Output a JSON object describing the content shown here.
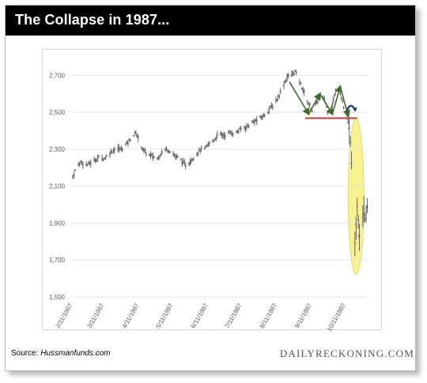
{
  "header": {
    "title": "The Collapse in 1987..."
  },
  "footer": {
    "source_prefix": "Source: ",
    "source_name": "Hussmanfunds.com",
    "brand": "DAILYRECKONING.COM"
  },
  "colors": {
    "candles": "#555555",
    "trend_arrows": "#3f6b2e",
    "support_line": "#c0504d",
    "highlight_ellipse": "#f3ee6e",
    "arc": "#1f3c6e"
  },
  "chart_data": {
    "type": "line",
    "style": "ohlc-bars",
    "title": "",
    "xlabel": "",
    "ylabel": "",
    "ylim": [
      1500,
      2800
    ],
    "yticks": [
      1500,
      1700,
      1900,
      2100,
      2300,
      2500,
      2700
    ],
    "ytick_labels": [
      "1,500",
      "1,700",
      "1,900",
      "2,100",
      "2,300",
      "2,500",
      "2,700"
    ],
    "xlim": [
      "1987-02-11",
      "1987-10-31"
    ],
    "xticks": [
      "2/11/1987",
      "3/11/1987",
      "4/11/1987",
      "5/11/1987",
      "6/11/1987",
      "7/11/1987",
      "8/11/1987",
      "9/11/1987",
      "10/11/1987"
    ],
    "grid": "horizontal",
    "series": [
      {
        "values": [
          [
            "1987-02-11",
            2150
          ],
          [
            "1987-02-14",
            2200
          ],
          [
            "1987-02-18",
            2230
          ],
          [
            "1987-02-24",
            2215
          ],
          [
            "1987-03-01",
            2235
          ],
          [
            "1987-03-06",
            2255
          ],
          [
            "1987-03-11",
            2250
          ],
          [
            "1987-03-16",
            2280
          ],
          [
            "1987-03-21",
            2305
          ],
          [
            "1987-03-26",
            2300
          ],
          [
            "1987-03-31",
            2330
          ],
          [
            "1987-04-05",
            2370
          ],
          [
            "1987-04-08",
            2390
          ],
          [
            "1987-04-11",
            2340
          ],
          [
            "1987-04-15",
            2290
          ],
          [
            "1987-04-19",
            2270
          ],
          [
            "1987-04-23",
            2260
          ],
          [
            "1987-04-27",
            2250
          ],
          [
            "1987-05-01",
            2285
          ],
          [
            "1987-05-05",
            2300
          ],
          [
            "1987-05-09",
            2290
          ],
          [
            "1987-05-13",
            2260
          ],
          [
            "1987-05-17",
            2250
          ],
          [
            "1987-05-20",
            2225
          ],
          [
            "1987-05-23",
            2210
          ],
          [
            "1987-05-26",
            2235
          ],
          [
            "1987-05-30",
            2265
          ],
          [
            "1987-06-04",
            2295
          ],
          [
            "1987-06-08",
            2300
          ],
          [
            "1987-06-12",
            2330
          ],
          [
            "1987-06-16",
            2350
          ],
          [
            "1987-06-20",
            2380
          ],
          [
            "1987-06-25",
            2375
          ],
          [
            "1987-06-30",
            2390
          ],
          [
            "1987-07-05",
            2385
          ],
          [
            "1987-07-10",
            2410
          ],
          [
            "1987-07-15",
            2420
          ],
          [
            "1987-07-20",
            2445
          ],
          [
            "1987-07-25",
            2460
          ],
          [
            "1987-07-30",
            2480
          ],
          [
            "1987-08-04",
            2515
          ],
          [
            "1987-08-08",
            2545
          ],
          [
            "1987-08-12",
            2580
          ],
          [
            "1987-08-16",
            2640
          ],
          [
            "1987-08-20",
            2690
          ],
          [
            "1987-08-24",
            2705
          ],
          [
            "1987-08-27",
            2720
          ],
          [
            "1987-08-30",
            2680
          ],
          [
            "1987-09-03",
            2620
          ],
          [
            "1987-09-07",
            2560
          ],
          [
            "1987-09-11",
            2510
          ],
          [
            "1987-09-15",
            2550
          ],
          [
            "1987-09-19",
            2585
          ],
          [
            "1987-09-22",
            2570
          ],
          [
            "1987-09-25",
            2505
          ],
          [
            "1987-09-29",
            2545
          ],
          [
            "1987-10-02",
            2610
          ],
          [
            "1987-10-05",
            2630
          ],
          [
            "1987-10-08",
            2560
          ],
          [
            "1987-10-10",
            2490
          ],
          [
            "1987-10-12",
            2470
          ],
          [
            "1987-10-14",
            2410
          ],
          [
            "1987-10-16",
            2250
          ],
          [
            "1987-10-18",
            1940
          ],
          [
            "1987-10-19",
            1780
          ],
          [
            "1987-10-20",
            1870
          ],
          [
            "1987-10-21",
            1990
          ],
          [
            "1987-10-22",
            1920
          ],
          [
            "1987-10-23",
            1840
          ],
          [
            "1987-10-25",
            1900
          ],
          [
            "1987-10-26",
            1950
          ],
          [
            "1987-10-27",
            1980
          ],
          [
            "1987-10-28",
            1935
          ],
          [
            "1987-10-29",
            1960
          ],
          [
            "1987-10-30",
            1995
          ],
          [
            "1987-10-31",
            1900
          ]
        ]
      }
    ],
    "annotations": [
      {
        "type": "trend-arrows",
        "points": [
          [
            "1987-08-22",
            2665
          ],
          [
            "1987-09-08",
            2490
          ],
          [
            "1987-09-18",
            2600
          ],
          [
            "1987-09-29",
            2490
          ],
          [
            "1987-10-06",
            2640
          ],
          [
            "1987-10-13",
            2480
          ]
        ]
      },
      {
        "type": "support-line",
        "x": [
          "1987-09-05",
          "1987-10-21"
        ],
        "y": 2468
      },
      {
        "type": "arc",
        "x": [
          "1987-10-12",
          "1987-10-19"
        ],
        "y": 2520
      },
      {
        "type": "ellipse",
        "x": [
          "1987-10-13",
          "1987-10-27"
        ],
        "y": [
          1620,
          2470
        ]
      }
    ]
  }
}
